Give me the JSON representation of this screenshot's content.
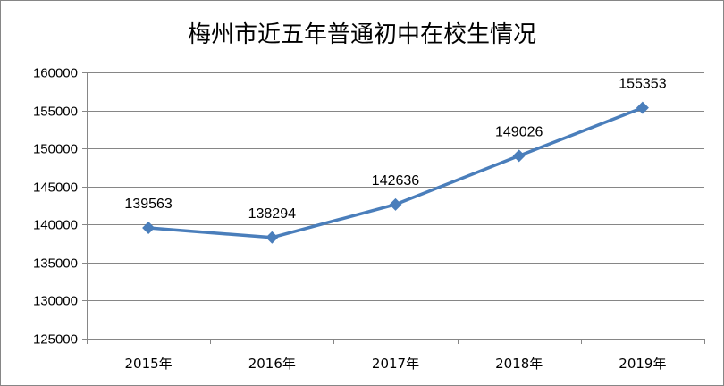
{
  "chart_data": {
    "type": "line",
    "title": "梅州市近五年普通初中在校生情况",
    "xlabel": "",
    "ylabel": "",
    "categories": [
      "2015年",
      "2016年",
      "2017年",
      "2018年",
      "2019年"
    ],
    "series": [
      {
        "values": [
          139563,
          138294,
          142636,
          149026,
          155353
        ]
      }
    ],
    "ylim": [
      125000,
      160000
    ],
    "yticks": [
      125000,
      130000,
      135000,
      140000,
      145000,
      150000,
      155000,
      160000
    ],
    "ytick_labels": [
      "125000",
      "130000",
      "135000",
      "140000",
      "145000",
      "150000",
      "155000",
      "160000"
    ],
    "data_labels": [
      "139563",
      "138294",
      "142636",
      "149026",
      "155353"
    ],
    "grid": true,
    "legend": false,
    "colors": {
      "series": "#4a7ebb",
      "grid": "#868686",
      "axis": "#868686"
    }
  }
}
